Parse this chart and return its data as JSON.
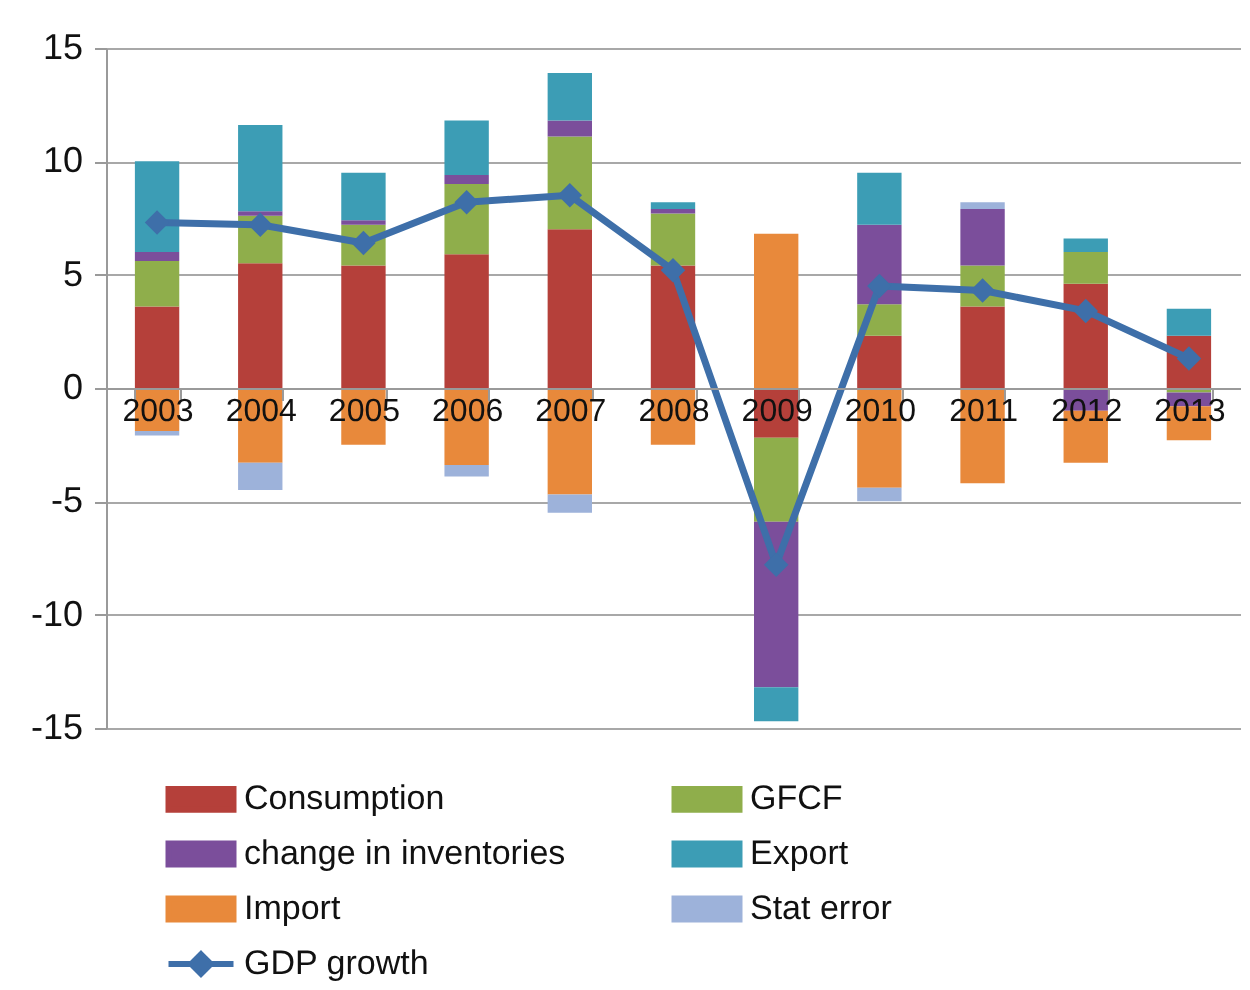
{
  "chart_data": {
    "type": "bar",
    "stacked": true,
    "categories": [
      "2003",
      "2004",
      "2005",
      "2006",
      "2007",
      "2008",
      "2009",
      "2010",
      "2011",
      "2012",
      "2013"
    ],
    "ylim": [
      -15,
      15
    ],
    "yticks": [
      -15,
      -10,
      -5,
      0,
      5,
      10,
      15
    ],
    "grid": "y",
    "legend": "bottom",
    "marker": "diamond",
    "series": [
      {
        "name": "Consumption",
        "color": "#b5403a",
        "values": [
          3.6,
          5.5,
          5.4,
          5.9,
          7.0,
          5.4,
          -2.2,
          2.3,
          3.6,
          4.6,
          2.3
        ]
      },
      {
        "name": "GFCF",
        "color": "#8fae4b",
        "values": [
          2.0,
          2.1,
          1.8,
          3.1,
          4.1,
          2.3,
          -3.7,
          1.4,
          1.8,
          1.4,
          -0.2
        ]
      },
      {
        "name": "change in inventories",
        "color": "#7b4e9b",
        "values": [
          0.4,
          0.2,
          0.2,
          0.4,
          0.7,
          0.2,
          -7.3,
          3.5,
          2.5,
          -1.0,
          -0.6
        ]
      },
      {
        "name": "Export",
        "color": "#3c9db5",
        "values": [
          4.0,
          3.8,
          2.1,
          2.4,
          2.1,
          0.3,
          -1.5,
          2.3,
          null,
          0.6,
          1.2
        ]
      },
      {
        "name": "Import",
        "color": "#e8893b",
        "values": [
          -1.9,
          -3.3,
          -2.5,
          -3.4,
          -4.7,
          -2.5,
          6.8,
          -4.4,
          -4.2,
          -2.3,
          -1.5
        ]
      },
      {
        "name": "Stat error",
        "color": "#9db2da",
        "values": [
          -0.2,
          -1.2,
          null,
          -0.5,
          -0.8,
          null,
          null,
          -0.6,
          0.3,
          null,
          null
        ]
      },
      {
        "name": "GDP growth",
        "type": "line",
        "color": "#3e6fa9",
        "values": [
          7.3,
          7.2,
          6.4,
          8.2,
          8.5,
          5.2,
          -7.8,
          4.5,
          4.3,
          3.4,
          1.3
        ]
      }
    ]
  }
}
